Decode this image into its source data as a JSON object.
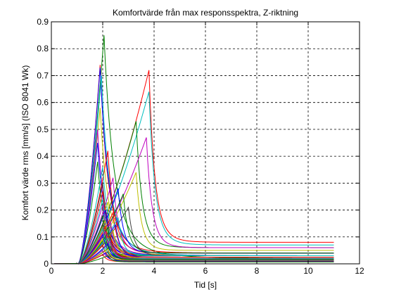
{
  "chart_data": {
    "type": "line",
    "title": "Komfortvärde från max responsspektra, Z-riktning",
    "xlabel": "Tid [s]",
    "ylabel": "Komfort värde rms [mm/s] (ISO 8041 Wk)",
    "xlim": [
      0,
      12
    ],
    "ylim": [
      0,
      0.9
    ],
    "xticks": [
      0,
      2,
      4,
      6,
      8,
      10,
      12
    ],
    "yticks": [
      0,
      0.1,
      0.2,
      0.3,
      0.4,
      0.5,
      0.6,
      0.7,
      0.8,
      0.9
    ],
    "grid": true,
    "legend": "none",
    "series_x_range": [
      0,
      11
    ],
    "series": [
      {
        "color": "#008000",
        "peak_time": 2.05,
        "peak_value": 0.85,
        "end_value": 0.02
      },
      {
        "color": "#ff0000",
        "peak_time": 1.9,
        "peak_value": 0.74,
        "end_value": 0.04
      },
      {
        "color": "#0000ff",
        "peak_time": 1.9,
        "peak_value": 0.73,
        "end_value": 0.03
      },
      {
        "color": "#ff0000",
        "peak_time": 3.8,
        "peak_value": 0.72,
        "end_value": 0.08
      },
      {
        "color": "#00bfbf",
        "peak_time": 1.95,
        "peak_value": 0.7,
        "end_value": 0.03
      },
      {
        "color": "#00bfbf",
        "peak_time": 3.8,
        "peak_value": 0.64,
        "end_value": 0.07
      },
      {
        "color": "#bfbf00",
        "peak_time": 1.9,
        "peak_value": 0.58,
        "end_value": 0.03
      },
      {
        "color": "#008000",
        "peak_time": 3.3,
        "peak_value": 0.53,
        "end_value": 0.06
      },
      {
        "color": "#bf00bf",
        "peak_time": 1.8,
        "peak_value": 0.5,
        "end_value": 0.03
      },
      {
        "color": "#bf00bf",
        "peak_time": 3.7,
        "peak_value": 0.47,
        "end_value": 0.06
      },
      {
        "color": "#0000ff",
        "peak_time": 1.8,
        "peak_value": 0.45,
        "end_value": 0.03
      },
      {
        "color": "#ff0000",
        "peak_time": 2.2,
        "peak_value": 0.42,
        "end_value": 0.04
      },
      {
        "color": "#008000",
        "peak_time": 1.8,
        "peak_value": 0.38,
        "end_value": 0.03
      },
      {
        "color": "#00bfbf",
        "peak_time": 2.0,
        "peak_value": 0.36,
        "end_value": 0.03
      },
      {
        "color": "#bfbf00",
        "peak_time": 3.3,
        "peak_value": 0.34,
        "end_value": 0.05
      },
      {
        "color": "#bf00bf",
        "peak_time": 2.4,
        "peak_value": 0.32,
        "end_value": 0.04
      },
      {
        "color": "#404040",
        "peak_time": 2.0,
        "peak_value": 0.3,
        "end_value": 0.03
      },
      {
        "color": "#0000ff",
        "peak_time": 2.6,
        "peak_value": 0.28,
        "end_value": 0.04
      },
      {
        "color": "#ff0000",
        "peak_time": 2.0,
        "peak_value": 0.27,
        "end_value": 0.03
      },
      {
        "color": "#008000",
        "peak_time": 2.8,
        "peak_value": 0.26,
        "end_value": 0.04
      },
      {
        "color": "#00bfbf",
        "peak_time": 2.0,
        "peak_value": 0.24,
        "end_value": 0.03
      },
      {
        "color": "#bfbf00",
        "peak_time": 2.2,
        "peak_value": 0.23,
        "end_value": 0.03
      },
      {
        "color": "#bf00bf",
        "peak_time": 2.0,
        "peak_value": 0.22,
        "end_value": 0.03
      },
      {
        "color": "#404040",
        "peak_time": 3.0,
        "peak_value": 0.21,
        "end_value": 0.03
      },
      {
        "color": "#0000ff",
        "peak_time": 2.1,
        "peak_value": 0.2,
        "end_value": 0.03
      },
      {
        "color": "#ff0000",
        "peak_time": 2.4,
        "peak_value": 0.19,
        "end_value": 0.03
      },
      {
        "color": "#008000",
        "peak_time": 2.0,
        "peak_value": 0.18,
        "end_value": 0.03
      },
      {
        "color": "#00bfbf",
        "peak_time": 2.6,
        "peak_value": 0.17,
        "end_value": 0.03
      },
      {
        "color": "#bfbf00",
        "peak_time": 2.1,
        "peak_value": 0.16,
        "end_value": 0.025
      },
      {
        "color": "#bf00bf",
        "peak_time": 2.3,
        "peak_value": 0.155,
        "end_value": 0.025
      },
      {
        "color": "#404040",
        "peak_time": 2.0,
        "peak_value": 0.15,
        "end_value": 0.025
      },
      {
        "color": "#0000ff",
        "peak_time": 2.5,
        "peak_value": 0.145,
        "end_value": 0.025
      },
      {
        "color": "#ff0000",
        "peak_time": 2.1,
        "peak_value": 0.14,
        "end_value": 0.025
      },
      {
        "color": "#008000",
        "peak_time": 2.2,
        "peak_value": 0.135,
        "end_value": 0.02
      },
      {
        "color": "#00bfbf",
        "peak_time": 2.0,
        "peak_value": 0.13,
        "end_value": 0.02
      },
      {
        "color": "#bfbf00",
        "peak_time": 2.4,
        "peak_value": 0.125,
        "end_value": 0.02
      },
      {
        "color": "#bf00bf",
        "peak_time": 2.1,
        "peak_value": 0.12,
        "end_value": 0.02
      },
      {
        "color": "#404040",
        "peak_time": 2.2,
        "peak_value": 0.115,
        "end_value": 0.02
      },
      {
        "color": "#0000ff",
        "peak_time": 2.0,
        "peak_value": 0.11,
        "end_value": 0.02
      },
      {
        "color": "#ff0000",
        "peak_time": 2.3,
        "peak_value": 0.105,
        "end_value": 0.02
      },
      {
        "color": "#008000",
        "peak_time": 2.1,
        "peak_value": 0.1,
        "end_value": 0.02
      },
      {
        "color": "#00bfbf",
        "peak_time": 2.2,
        "peak_value": 0.095,
        "end_value": 0.02
      },
      {
        "color": "#bfbf00",
        "peak_time": 2.0,
        "peak_value": 0.09,
        "end_value": 0.018
      },
      {
        "color": "#bf00bf",
        "peak_time": 2.3,
        "peak_value": 0.085,
        "end_value": 0.018
      },
      {
        "color": "#404040",
        "peak_time": 2.1,
        "peak_value": 0.08,
        "end_value": 0.018
      },
      {
        "color": "#0000ff",
        "peak_time": 2.2,
        "peak_value": 0.075,
        "end_value": 0.015
      },
      {
        "color": "#ff0000",
        "peak_time": 2.0,
        "peak_value": 0.07,
        "end_value": 0.015
      },
      {
        "color": "#008000",
        "peak_time": 2.3,
        "peak_value": 0.065,
        "end_value": 0.015
      },
      {
        "color": "#00bfbf",
        "peak_time": 2.1,
        "peak_value": 0.06,
        "end_value": 0.013
      },
      {
        "color": "#bfbf00",
        "peak_time": 2.2,
        "peak_value": 0.055,
        "end_value": 0.012
      },
      {
        "color": "#bf00bf",
        "peak_time": 2.0,
        "peak_value": 0.05,
        "end_value": 0.011
      },
      {
        "color": "#404040",
        "peak_time": 2.2,
        "peak_value": 0.045,
        "end_value": 0.01
      },
      {
        "color": "#0000ff",
        "peak_time": 2.1,
        "peak_value": 0.04,
        "end_value": 0.009
      },
      {
        "color": "#ff0000",
        "peak_time": 2.0,
        "peak_value": 0.035,
        "end_value": 0.008
      },
      {
        "color": "#008000",
        "peak_time": 2.2,
        "peak_value": 0.03,
        "end_value": 0.007
      }
    ]
  }
}
